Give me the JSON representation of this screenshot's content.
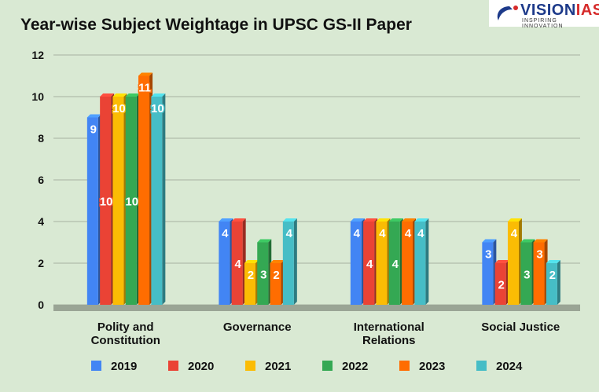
{
  "chart_data": {
    "type": "bar",
    "title": "Year-wise Subject Weightage in UPSC GS-II Paper",
    "categories": [
      [
        "Polity and",
        "Constitution"
      ],
      [
        "Governance"
      ],
      [
        "International",
        "Relations"
      ],
      [
        "Social Justice"
      ]
    ],
    "series": [
      {
        "name": "2019",
        "color": "#4285F4",
        "values": [
          9,
          4,
          4,
          3
        ]
      },
      {
        "name": "2020",
        "color": "#EA4335",
        "values": [
          10,
          4,
          4,
          2
        ]
      },
      {
        "name": "2021",
        "color": "#FBBC04",
        "values": [
          10,
          2,
          4,
          4
        ]
      },
      {
        "name": "2022",
        "color": "#34A853",
        "values": [
          10,
          3,
          4,
          3
        ]
      },
      {
        "name": "2023",
        "color": "#FF6D01",
        "values": [
          11,
          2,
          4,
          3
        ]
      },
      {
        "name": "2024",
        "color": "#46BDC6",
        "values": [
          10,
          4,
          4,
          2
        ]
      }
    ],
    "ylim": [
      0,
      12
    ],
    "yticks": [
      0,
      2,
      4,
      6,
      8,
      10,
      12
    ],
    "grid": true,
    "legend": "bottom",
    "data_labels": true
  },
  "logo": {
    "brand_a": "VISION",
    "brand_b": "IAS",
    "tagline": "INSPIRING INNOVATION"
  }
}
